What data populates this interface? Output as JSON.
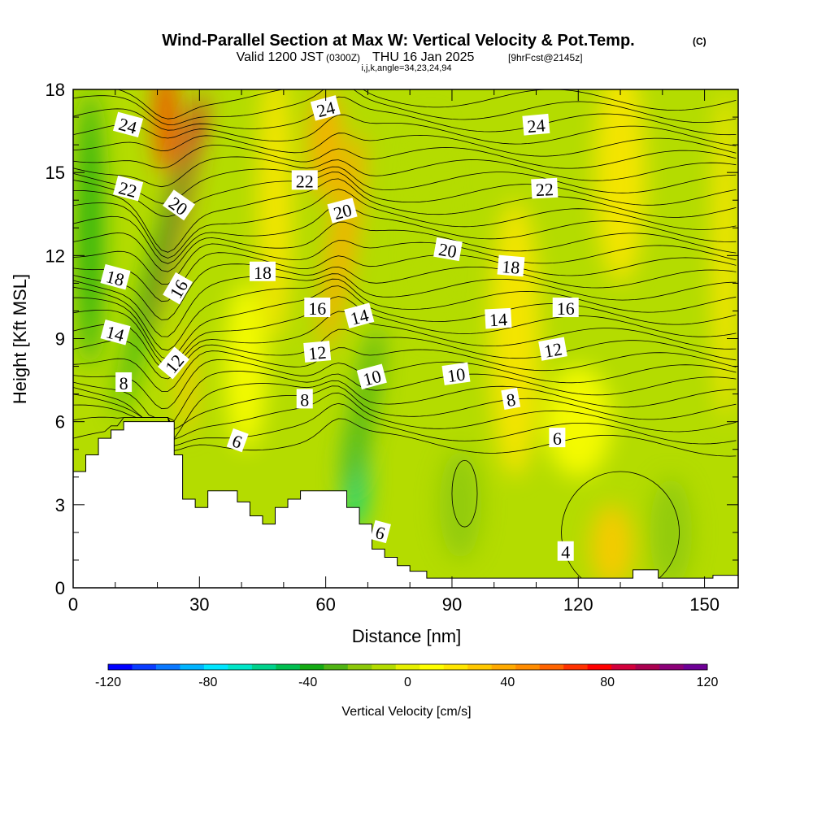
{
  "chart_data": {
    "type": "heatmap",
    "title": "Wind-Parallel Section at Max W: Vertical Velocity & Pot.Temp.",
    "title_mark": "(C)",
    "subtitle_valid": "Valid 1200 JST",
    "subtitle_utc": "(0300Z)",
    "subtitle_date": "THU 16 Jan 2025",
    "subtitle_fcst": "[9hrFcst@2145z]",
    "subtitle_indices": "i,j,k,angle=34,23,24,94",
    "xlabel": "Distance [nm]",
    "ylabel": "Height [Kft MSL]",
    "xlim": [
      0,
      158
    ],
    "ylim": [
      0,
      18
    ],
    "xticks": [
      0,
      30,
      60,
      90,
      120,
      150
    ],
    "yticks": [
      0,
      3,
      6,
      9,
      12,
      15,
      18
    ],
    "grid": false,
    "colorbar": {
      "label": "Vertical Velocity [cm/s]",
      "range": [
        -120,
        120
      ],
      "step": 10,
      "tick_values": [
        -120,
        -80,
        -40,
        0,
        40,
        80,
        120
      ],
      "colors": [
        "#0000ff",
        "#0a3cff",
        "#0a78ff",
        "#00b4ff",
        "#00e6ff",
        "#00e6c8",
        "#00d28c",
        "#00be50",
        "#14aa14",
        "#50b414",
        "#8cc80a",
        "#b4dc00",
        "#e6f000",
        "#ffff00",
        "#ffe600",
        "#ffc800",
        "#ffaa00",
        "#ff8c00",
        "#ff6400",
        "#ff3200",
        "#ff0000",
        "#d2003c",
        "#aa0050",
        "#8c0078",
        "#6e0096"
      ]
    },
    "terrain_height_kft": [
      {
        "x": 0,
        "y": 4.2
      },
      {
        "x": 3,
        "y": 4.2
      },
      {
        "x": 3,
        "y": 4.8
      },
      {
        "x": 6,
        "y": 4.8
      },
      {
        "x": 6,
        "y": 5.4
      },
      {
        "x": 9,
        "y": 5.4
      },
      {
        "x": 9,
        "y": 5.7
      },
      {
        "x": 12,
        "y": 5.7
      },
      {
        "x": 12,
        "y": 6.0
      },
      {
        "x": 24,
        "y": 6.0
      },
      {
        "x": 24,
        "y": 4.8
      },
      {
        "x": 26,
        "y": 4.8
      },
      {
        "x": 26,
        "y": 3.2
      },
      {
        "x": 29,
        "y": 3.2
      },
      {
        "x": 29,
        "y": 2.9
      },
      {
        "x": 32,
        "y": 2.9
      },
      {
        "x": 32,
        "y": 3.5
      },
      {
        "x": 39,
        "y": 3.5
      },
      {
        "x": 39,
        "y": 3.1
      },
      {
        "x": 42,
        "y": 3.1
      },
      {
        "x": 42,
        "y": 2.6
      },
      {
        "x": 45,
        "y": 2.6
      },
      {
        "x": 45,
        "y": 2.3
      },
      {
        "x": 48,
        "y": 2.3
      },
      {
        "x": 48,
        "y": 2.9
      },
      {
        "x": 51,
        "y": 2.9
      },
      {
        "x": 51,
        "y": 3.2
      },
      {
        "x": 54,
        "y": 3.2
      },
      {
        "x": 54,
        "y": 3.5
      },
      {
        "x": 65,
        "y": 3.5
      },
      {
        "x": 65,
        "y": 2.9
      },
      {
        "x": 68,
        "y": 2.9
      },
      {
        "x": 68,
        "y": 2.3
      },
      {
        "x": 71,
        "y": 2.3
      },
      {
        "x": 71,
        "y": 1.4
      },
      {
        "x": 74,
        "y": 1.4
      },
      {
        "x": 74,
        "y": 1.1
      },
      {
        "x": 77,
        "y": 1.1
      },
      {
        "x": 77,
        "y": 0.8
      },
      {
        "x": 80,
        "y": 0.8
      },
      {
        "x": 80,
        "y": 0.6
      },
      {
        "x": 84,
        "y": 0.6
      },
      {
        "x": 84,
        "y": 0.35
      },
      {
        "x": 133,
        "y": 0.35
      },
      {
        "x": 133,
        "y": 0.65
      },
      {
        "x": 139,
        "y": 0.65
      },
      {
        "x": 139,
        "y": 0.35
      },
      {
        "x": 152,
        "y": 0.35
      },
      {
        "x": 152,
        "y": 0.45
      },
      {
        "x": 158,
        "y": 0.45
      }
    ],
    "w_features_cm_s": [
      {
        "x": 24,
        "y": 13.5,
        "value": 90,
        "sx": 2.5,
        "sy": 4.5,
        "slant": 0.45
      },
      {
        "x": 22,
        "y": 17,
        "value": 70,
        "sx": 2.5,
        "sy": 2,
        "slant": 0
      },
      {
        "x": 19,
        "y": 11,
        "value": -40,
        "sx": 2,
        "sy": 5,
        "slant": 0.5
      },
      {
        "x": 27,
        "y": 7.5,
        "value": 30,
        "sx": 2,
        "sy": 2,
        "slant": 0
      },
      {
        "x": 60,
        "y": 16,
        "value": 40,
        "sx": 4,
        "sy": 2,
        "slant": 0
      },
      {
        "x": 64,
        "y": 12.5,
        "value": 35,
        "sx": 3,
        "sy": 4,
        "slant": 0.3
      },
      {
        "x": 67,
        "y": 4,
        "value": -55,
        "sx": 3,
        "sy": 2,
        "slant": 0
      },
      {
        "x": 69,
        "y": 6.5,
        "value": -30,
        "sx": 3,
        "sy": 3,
        "slant": 0.35
      },
      {
        "x": 4,
        "y": 13,
        "value": -35,
        "sx": 3,
        "sy": 5,
        "slant": 0
      },
      {
        "x": 48,
        "y": 14,
        "value": 15,
        "sx": 4,
        "sy": 5,
        "slant": 0
      },
      {
        "x": 105,
        "y": 9,
        "value": 15,
        "sx": 6,
        "sy": 5,
        "slant": 0
      },
      {
        "x": 130,
        "y": 15,
        "value": 15,
        "sx": 6,
        "sy": 4,
        "slant": 0
      },
      {
        "x": 128,
        "y": 1.5,
        "value": 25,
        "sx": 5,
        "sy": 1.5,
        "slant": 0
      },
      {
        "x": 92,
        "y": 3,
        "value": -20,
        "sx": 5,
        "sy": 2,
        "slant": 0
      },
      {
        "x": 142,
        "y": 2,
        "value": -15,
        "sx": 5,
        "sy": 2,
        "slant": 0
      },
      {
        "x": 85,
        "y": 13,
        "value": -12,
        "sx": 4,
        "sy": 4,
        "slant": 0
      },
      {
        "x": 120,
        "y": 6,
        "value": 12,
        "sx": 8,
        "sy": 2,
        "slant": 0
      },
      {
        "x": 41,
        "y": 8,
        "value": 12,
        "sx": 5,
        "sy": 3,
        "slant": 0
      },
      {
        "x": 155,
        "y": 12,
        "value": 18,
        "sx": 3,
        "sy": 6,
        "slant": 0
      }
    ],
    "theta_contours_c": [
      4,
      6,
      8,
      10,
      12,
      14,
      16,
      18,
      20,
      22,
      24
    ],
    "contour_labels": [
      {
        "text": "24",
        "x": 13,
        "y": 16.7,
        "angle": 15
      },
      {
        "text": "24",
        "x": 60,
        "y": 17.3,
        "angle": -15
      },
      {
        "text": "24",
        "x": 110,
        "y": 16.7,
        "angle": -5
      },
      {
        "text": "22",
        "x": 13,
        "y": 14.4,
        "angle": 15
      },
      {
        "text": "22",
        "x": 55,
        "y": 14.7,
        "angle": 0
      },
      {
        "text": "22",
        "x": 112,
        "y": 14.4,
        "angle": -3
      },
      {
        "text": "20",
        "x": 25,
        "y": 13.8,
        "angle": 35
      },
      {
        "text": "20",
        "x": 64,
        "y": 13.6,
        "angle": -15
      },
      {
        "text": "20",
        "x": 89,
        "y": 12.2,
        "angle": 10
      },
      {
        "text": "18",
        "x": 10,
        "y": 11.2,
        "angle": 15
      },
      {
        "text": "18",
        "x": 45,
        "y": 11.4,
        "angle": 0
      },
      {
        "text": "18",
        "x": 104,
        "y": 11.6,
        "angle": 5
      },
      {
        "text": "16",
        "x": 25,
        "y": 10.8,
        "angle": -60
      },
      {
        "text": "16",
        "x": 58,
        "y": 10.1,
        "angle": 0
      },
      {
        "text": "16",
        "x": 117,
        "y": 10.1,
        "angle": 0
      },
      {
        "text": "14",
        "x": 10,
        "y": 9.2,
        "angle": 15
      },
      {
        "text": "14",
        "x": 68,
        "y": 9.8,
        "angle": -15
      },
      {
        "text": "14",
        "x": 101,
        "y": 9.7,
        "angle": -3
      },
      {
        "text": "12",
        "x": 24,
        "y": 8.1,
        "angle": -50
      },
      {
        "text": "12",
        "x": 58,
        "y": 8.5,
        "angle": -5
      },
      {
        "text": "12",
        "x": 114,
        "y": 8.6,
        "angle": -10
      },
      {
        "text": "10",
        "x": 71,
        "y": 7.6,
        "angle": -15
      },
      {
        "text": "10",
        "x": 91,
        "y": 7.7,
        "angle": -8
      },
      {
        "text": "8",
        "x": 12,
        "y": 7.4,
        "angle": 0
      },
      {
        "text": "8",
        "x": 55,
        "y": 6.8,
        "angle": 0
      },
      {
        "text": "8",
        "x": 104,
        "y": 6.8,
        "angle": -10
      },
      {
        "text": "6",
        "x": 39,
        "y": 5.3,
        "angle": 20
      },
      {
        "text": "6",
        "x": 73,
        "y": 2.0,
        "angle": 15
      },
      {
        "text": "6",
        "x": 115,
        "y": 5.4,
        "angle": 0
      },
      {
        "text": "4",
        "x": 117,
        "y": 1.3,
        "angle": 0
      }
    ]
  }
}
